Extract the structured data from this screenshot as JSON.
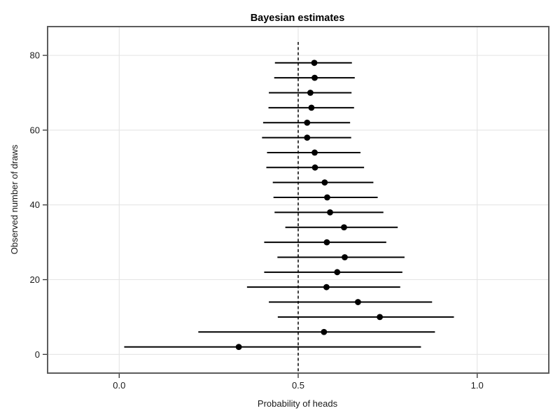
{
  "chart_data": {
    "type": "pointrange",
    "title": "Bayesian estimates",
    "xlabel": "Probability of heads",
    "ylabel": "Observed number of draws",
    "xlim": [
      -0.2,
      1.2
    ],
    "ylim": [
      -5,
      87.7
    ],
    "grid": true,
    "legend": "none",
    "x_ticks": [
      0,
      0.5,
      1
    ],
    "x_tick_labels": [
      "0.0",
      "0.5",
      "1.0"
    ],
    "y_ticks": [
      0,
      20,
      40,
      60,
      80
    ],
    "y_tick_labels": [
      "0",
      "20",
      "40",
      "60",
      "80"
    ],
    "reference_line": {
      "x": 0.5,
      "style": "dashed",
      "color": "#000000"
    },
    "series": [
      {
        "name": "posterior-interval",
        "draws": [
          2,
          6,
          10,
          14,
          18,
          22,
          26,
          30,
          34,
          38,
          42,
          46,
          50,
          54,
          58,
          62,
          66,
          70,
          74,
          78
        ],
        "lower": [
          0.014,
          0.221,
          0.443,
          0.418,
          0.357,
          0.405,
          0.442,
          0.405,
          0.464,
          0.434,
          0.431,
          0.429,
          0.411,
          0.413,
          0.399,
          0.402,
          0.417,
          0.418,
          0.433,
          0.435
        ],
        "estimate": [
          0.334,
          0.572,
          0.728,
          0.667,
          0.579,
          0.609,
          0.63,
          0.58,
          0.628,
          0.589,
          0.581,
          0.574,
          0.547,
          0.546,
          0.525,
          0.525,
          0.537,
          0.534,
          0.546,
          0.545
        ],
        "upper": [
          0.843,
          0.882,
          0.935,
          0.874,
          0.785,
          0.791,
          0.797,
          0.746,
          0.778,
          0.738,
          0.722,
          0.71,
          0.684,
          0.674,
          0.648,
          0.645,
          0.656,
          0.649,
          0.658,
          0.65
        ]
      }
    ],
    "colors": {
      "background": "#ffffff",
      "panel_background": "#ffffff",
      "panel_border": "#5c5c5c",
      "gridline": "#e4e4e4",
      "data": "#000000",
      "tick": "#333333",
      "text": "#1a1a1a"
    }
  }
}
